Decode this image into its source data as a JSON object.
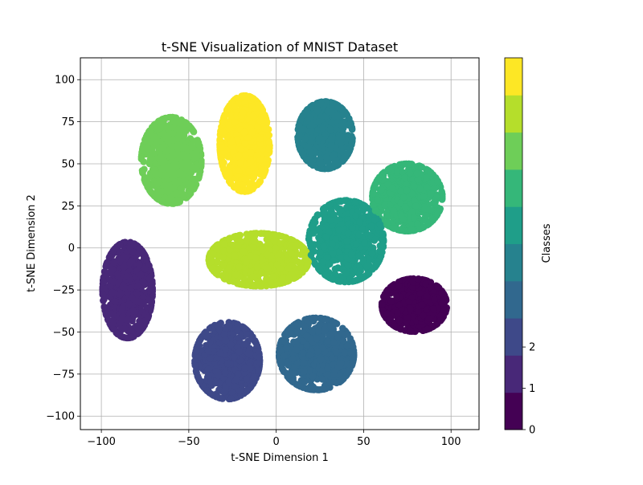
{
  "chart_data": {
    "type": "scatter",
    "title": "t-SNE Visualization of MNIST Dataset",
    "xlabel": "t-SNE Dimension 1",
    "ylabel": "t-SNE Dimension 2",
    "xlim": [
      -112,
      116
    ],
    "ylim": [
      -108,
      113
    ],
    "xticks": [
      -100,
      -50,
      0,
      50,
      100
    ],
    "xtick_labels": [
      "−100",
      "−50",
      "0",
      "50",
      "100"
    ],
    "yticks": [
      -100,
      -75,
      -50,
      -25,
      0,
      25,
      50,
      75,
      100
    ],
    "ytick_labels": [
      "−100",
      "−75",
      "−50",
      "−25",
      "0",
      "25",
      "50",
      "75",
      "100"
    ],
    "grid": true,
    "colormap": "viridis",
    "colors": [
      "#440154",
      "#482878",
      "#3e4989",
      "#31688e",
      "#26828e",
      "#1f9e89",
      "#35b779",
      "#6ece58",
      "#b5de2b",
      "#fde725"
    ],
    "colorbar": {
      "label": "Classes",
      "range": [
        0,
        9
      ],
      "ticks": [
        0,
        1,
        2
      ],
      "tick_labels": [
        "0",
        "1",
        "2"
      ],
      "levels": 10
    },
    "clusters": [
      {
        "class": 0,
        "center": [
          79,
          -34
        ],
        "spread": [
          13,
          11
        ],
        "approx_points": 700
      },
      {
        "class": 1,
        "center": [
          -85,
          -25
        ],
        "spread": [
          10,
          20
        ],
        "approx_points": 700
      },
      {
        "class": 2,
        "center": [
          -28,
          -67
        ],
        "spread": [
          13,
          16
        ],
        "approx_points": 700
      },
      {
        "class": 3,
        "center": [
          23,
          -63
        ],
        "spread": [
          15,
          15
        ],
        "approx_points": 700
      },
      {
        "class": 4,
        "center": [
          28,
          67
        ],
        "spread": [
          11,
          14
        ],
        "approx_points": 700
      },
      {
        "class": 5,
        "center": [
          40,
          4
        ],
        "spread": [
          15,
          17
        ],
        "approx_points": 700
      },
      {
        "class": 6,
        "center": [
          75,
          30
        ],
        "spread": [
          14,
          14
        ],
        "approx_points": 700
      },
      {
        "class": 7,
        "center": [
          -60,
          52
        ],
        "spread": [
          12,
          18
        ],
        "approx_points": 700
      },
      {
        "class": 8,
        "center": [
          -10,
          -7
        ],
        "spread": [
          20,
          11
        ],
        "approx_points": 700
      },
      {
        "class": 9,
        "center": [
          -18,
          62
        ],
        "spread": [
          10,
          20
        ],
        "approx_points": 700
      }
    ]
  }
}
